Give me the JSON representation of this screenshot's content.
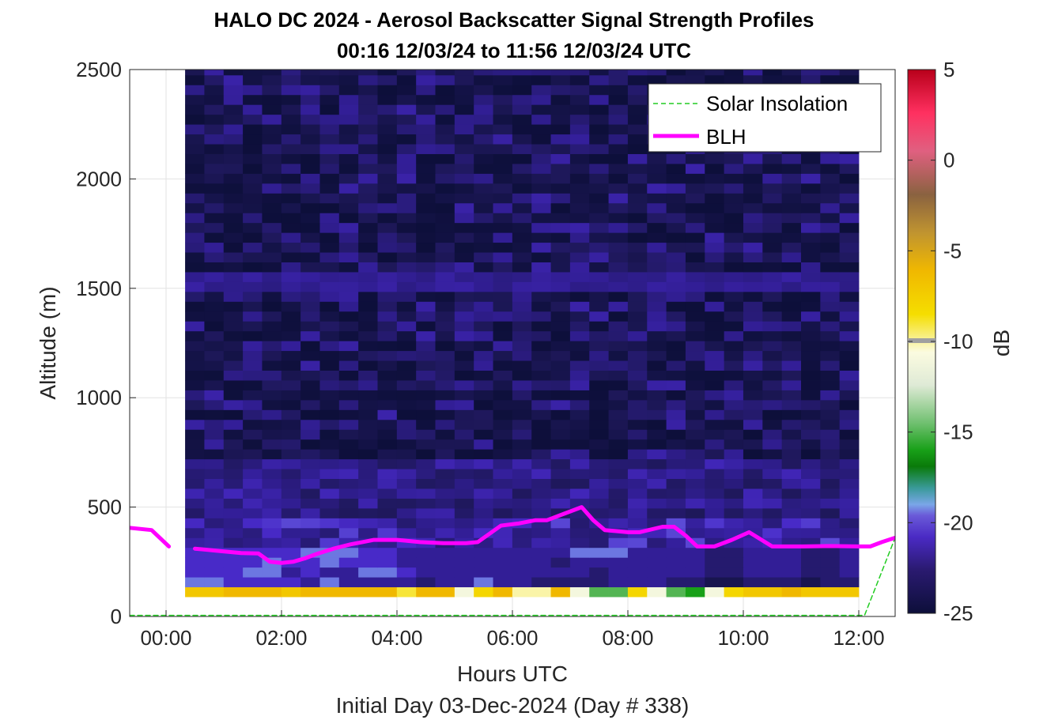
{
  "chart_data": {
    "type": "heatmap",
    "title": "HALO DC 2024 - Aerosol Backscatter Signal Strength Profiles",
    "subtitle": "00:16 12/03/24 to 11:56 12/03/24  UTC",
    "xlabel": "Hours UTC",
    "ylabel": "Altitude (m)",
    "footer": "Initial Day 03-Dec-2024 (Day # 338)",
    "xlim": [
      -0.63,
      12.63
    ],
    "ylim": [
      0,
      2500
    ],
    "x_ticks": [
      0,
      2,
      4,
      6,
      8,
      10,
      12
    ],
    "x_tick_labels": [
      "00:00",
      "02:00",
      "04:00",
      "06:00",
      "08:00",
      "10:00",
      "12:00"
    ],
    "y_ticks": [
      0,
      500,
      1000,
      1500,
      2000,
      2500
    ],
    "y_tick_labels": [
      "0",
      "500",
      "1000",
      "1500",
      "2000",
      "2500"
    ],
    "grid": true,
    "colorbar": {
      "label": "dB",
      "range": [
        -25,
        5
      ],
      "ticks": [
        5,
        0,
        -5,
        -10,
        -15,
        -20,
        -25
      ],
      "tick_labels": [
        "5",
        "0",
        "-5",
        "-10",
        "-15",
        "-20",
        "-25"
      ]
    },
    "heatmap_grid": {
      "x_start_hours": 0.33,
      "x_end_hours": 12.0,
      "columns": 35,
      "altitude_start_m": 90,
      "altitude_end_m": 2500,
      "altitude_step_m": 45,
      "low_rows_db": {
        "90": [
          -7,
          -7,
          -6,
          -6,
          -6,
          -7,
          -6,
          -6,
          -6,
          -6,
          -6,
          -9,
          -6,
          -6,
          -11,
          -8,
          -6,
          -10,
          -10,
          -6,
          -11,
          -15,
          -15,
          -8,
          -11,
          -15,
          -16,
          -11,
          -8,
          -7,
          -7,
          -6,
          -7,
          -7,
          -7
        ],
        "135": [
          -20,
          -20,
          -21,
          -21,
          -21,
          -21,
          -22,
          -20,
          -22,
          -22,
          -22,
          -22,
          -23,
          -22,
          -22,
          -20,
          -22,
          -22,
          -23,
          -23,
          -23,
          -23,
          -22,
          -22,
          -22,
          -23,
          -23,
          -24,
          -24,
          -23,
          -23,
          -23,
          -24,
          -23,
          -23
        ],
        "180": [
          -21,
          -21,
          -21,
          -20,
          -20,
          -22,
          -21,
          -22,
          -22,
          -20,
          -20,
          -21,
          -22,
          -22,
          -22,
          -22,
          -22,
          -22,
          -22,
          -22,
          -22,
          -23,
          -22,
          -22,
          -22,
          -22,
          -22,
          -23,
          -23,
          -22,
          -22,
          -22,
          -23,
          -23,
          -22
        ],
        "225": [
          -21,
          -21,
          -21,
          -21,
          -20,
          -21,
          -21,
          -20,
          -21,
          -21,
          -21,
          -22,
          -22,
          -22,
          -22,
          -22,
          -22,
          -22,
          -22,
          -23,
          -22,
          -22,
          -22,
          -22,
          -22,
          -22,
          -22,
          -23,
          -23,
          -22,
          -22,
          -22,
          -23,
          -23,
          -22
        ],
        "270": [
          -21,
          -21,
          -21,
          -21,
          -21,
          -21,
          -20,
          -20,
          -20,
          -21,
          -21,
          -22,
          -22,
          -22,
          -22,
          -22,
          -22,
          -22,
          -22,
          -22,
          -20,
          -20,
          -20,
          -22,
          -22,
          -22,
          -22,
          -23,
          -23,
          -22,
          -22,
          -22,
          -23,
          -23,
          -22
        ]
      },
      "upper_range_db": [
        -25,
        -21
      ],
      "near_surface_band_db": [
        -25,
        -20
      ],
      "elevated_band_db": [
        -23,
        -22
      ]
    },
    "series": [
      {
        "name": "Solar Insolation",
        "style": "dashed",
        "color": "#22cc22",
        "x": [
          -0.63,
          12.1,
          12.63
        ],
        "y": [
          5,
          5,
          360
        ]
      },
      {
        "name": "BLH",
        "style": "solid",
        "color": "#ff00ff",
        "segments": [
          {
            "x": [
              -0.63,
              -0.25,
              0.05
            ],
            "y": [
              405,
              395,
              320
            ]
          },
          {
            "x": [
              0.5,
              0.9,
              1.3,
              1.6,
              1.8,
              2.0,
              2.2,
              2.4,
              2.6,
              2.9,
              3.2,
              3.4,
              3.6,
              4.0,
              4.4,
              4.8,
              5.2,
              5.4,
              5.8,
              6.1,
              6.4,
              6.6,
              6.9,
              7.2,
              7.4,
              7.6,
              7.8,
              8.0,
              8.2,
              8.6,
              8.8,
              9.0,
              9.2,
              9.5,
              9.8,
              10.1,
              10.5,
              11.0,
              11.5,
              12.0,
              12.2,
              12.4,
              12.63
            ],
            "y": [
              310,
              300,
              290,
              288,
              250,
              245,
              250,
              265,
              285,
              310,
              330,
              340,
              350,
              350,
              340,
              335,
              335,
              340,
              415,
              425,
              440,
              440,
              470,
              500,
              440,
              395,
              390,
              385,
              385,
              410,
              410,
              370,
              320,
              320,
              350,
              385,
              320,
              320,
              322,
              320,
              320,
              340,
              360
            ]
          }
        ]
      }
    ],
    "legend": {
      "placement": "top-right",
      "entries": [
        "Solar Insolation",
        "BLH"
      ]
    }
  }
}
